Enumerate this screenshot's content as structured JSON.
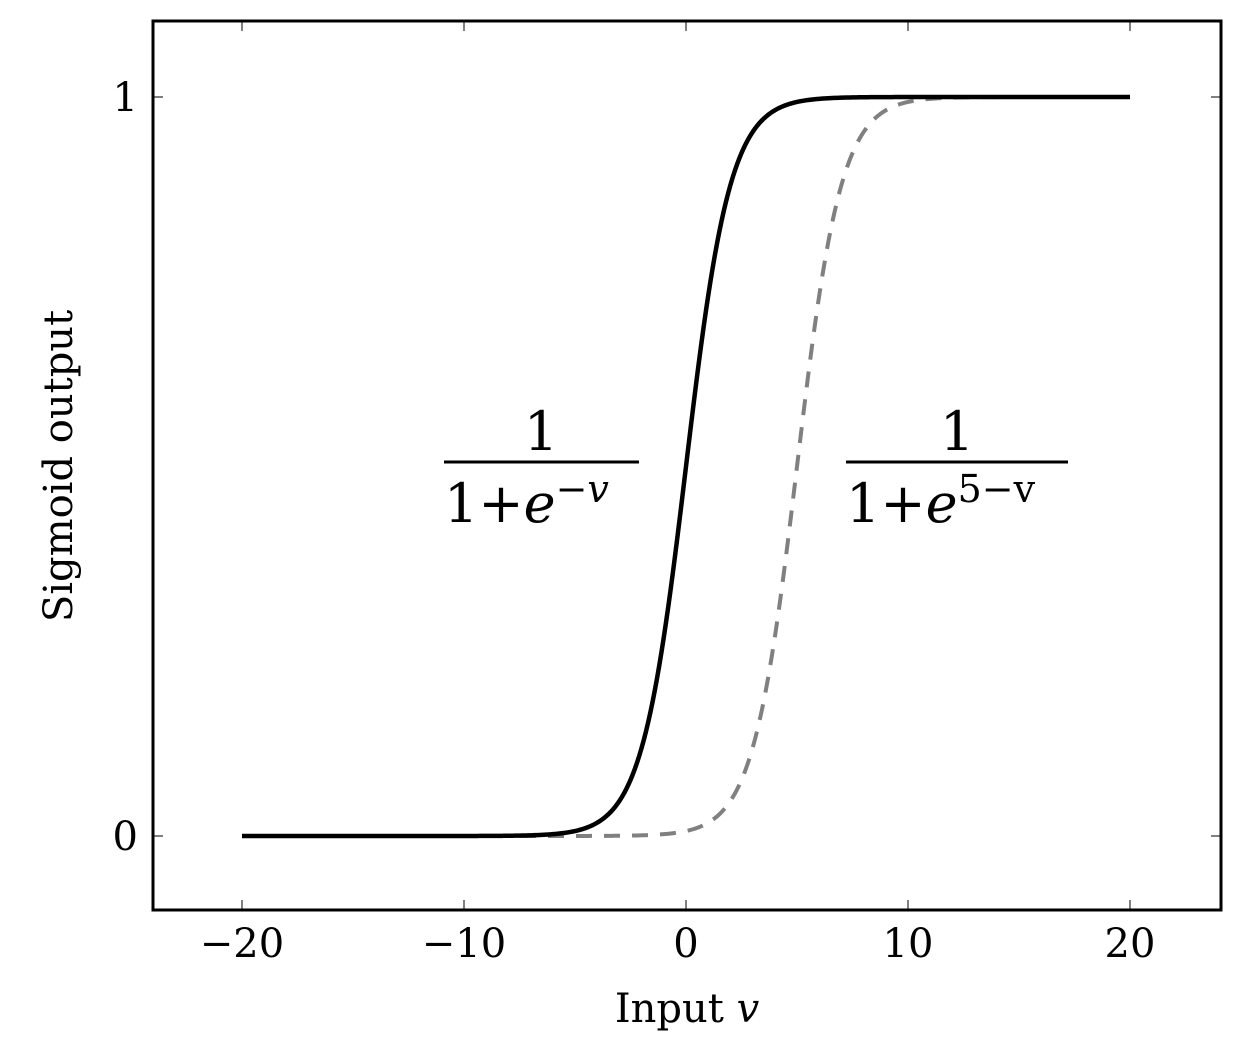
{
  "chart_data": {
    "type": "line",
    "title": "",
    "xlabel": "Input",
    "xlabel_var": "v",
    "ylabel": "Sigmoid output",
    "xlim": [
      -24,
      24
    ],
    "ylim": [
      -0.1,
      1.1
    ],
    "xticks": [
      -20,
      -10,
      0,
      10,
      20
    ],
    "xtick_labels": [
      "−20",
      "−10",
      "0",
      "10",
      "20"
    ],
    "yticks": [
      0,
      1
    ],
    "ytick_labels": [
      "0",
      "1"
    ],
    "grid": false,
    "legend": "none",
    "series": [
      {
        "formula": "1 / (1 + e^(-v))",
        "style": "solid",
        "color": "#000000",
        "x": [
          -20,
          -10,
          -6,
          -5,
          -4,
          -3,
          -2,
          -1,
          0,
          1,
          2,
          3,
          4,
          5,
          6,
          10,
          20
        ],
        "y": [
          0.0,
          0.0,
          0.002,
          0.007,
          0.018,
          0.047,
          0.119,
          0.269,
          0.5,
          0.731,
          0.881,
          0.953,
          0.982,
          0.993,
          0.998,
          1.0,
          1.0
        ]
      },
      {
        "formula": "1 / (1 + e^(5-v))",
        "style": "dashed",
        "color": "#808080",
        "x": [
          -10,
          -5,
          -1,
          0,
          1,
          2,
          3,
          4,
          5,
          6,
          7,
          8,
          9,
          10,
          11,
          15,
          20
        ],
        "y": [
          0.0,
          0.0,
          0.002,
          0.007,
          0.018,
          0.047,
          0.119,
          0.269,
          0.5,
          0.731,
          0.881,
          0.953,
          0.982,
          0.993,
          0.998,
          1.0,
          1.0
        ]
      }
    ],
    "annotations": [
      {
        "numerator": "1",
        "denominator_base": "1+",
        "e": "e",
        "exponent": "−v",
        "near_x": -6.5
      },
      {
        "numerator": "1",
        "denominator_base": "1+",
        "e": "e",
        "exponent": "5−v",
        "near_x": 12.5
      }
    ]
  }
}
